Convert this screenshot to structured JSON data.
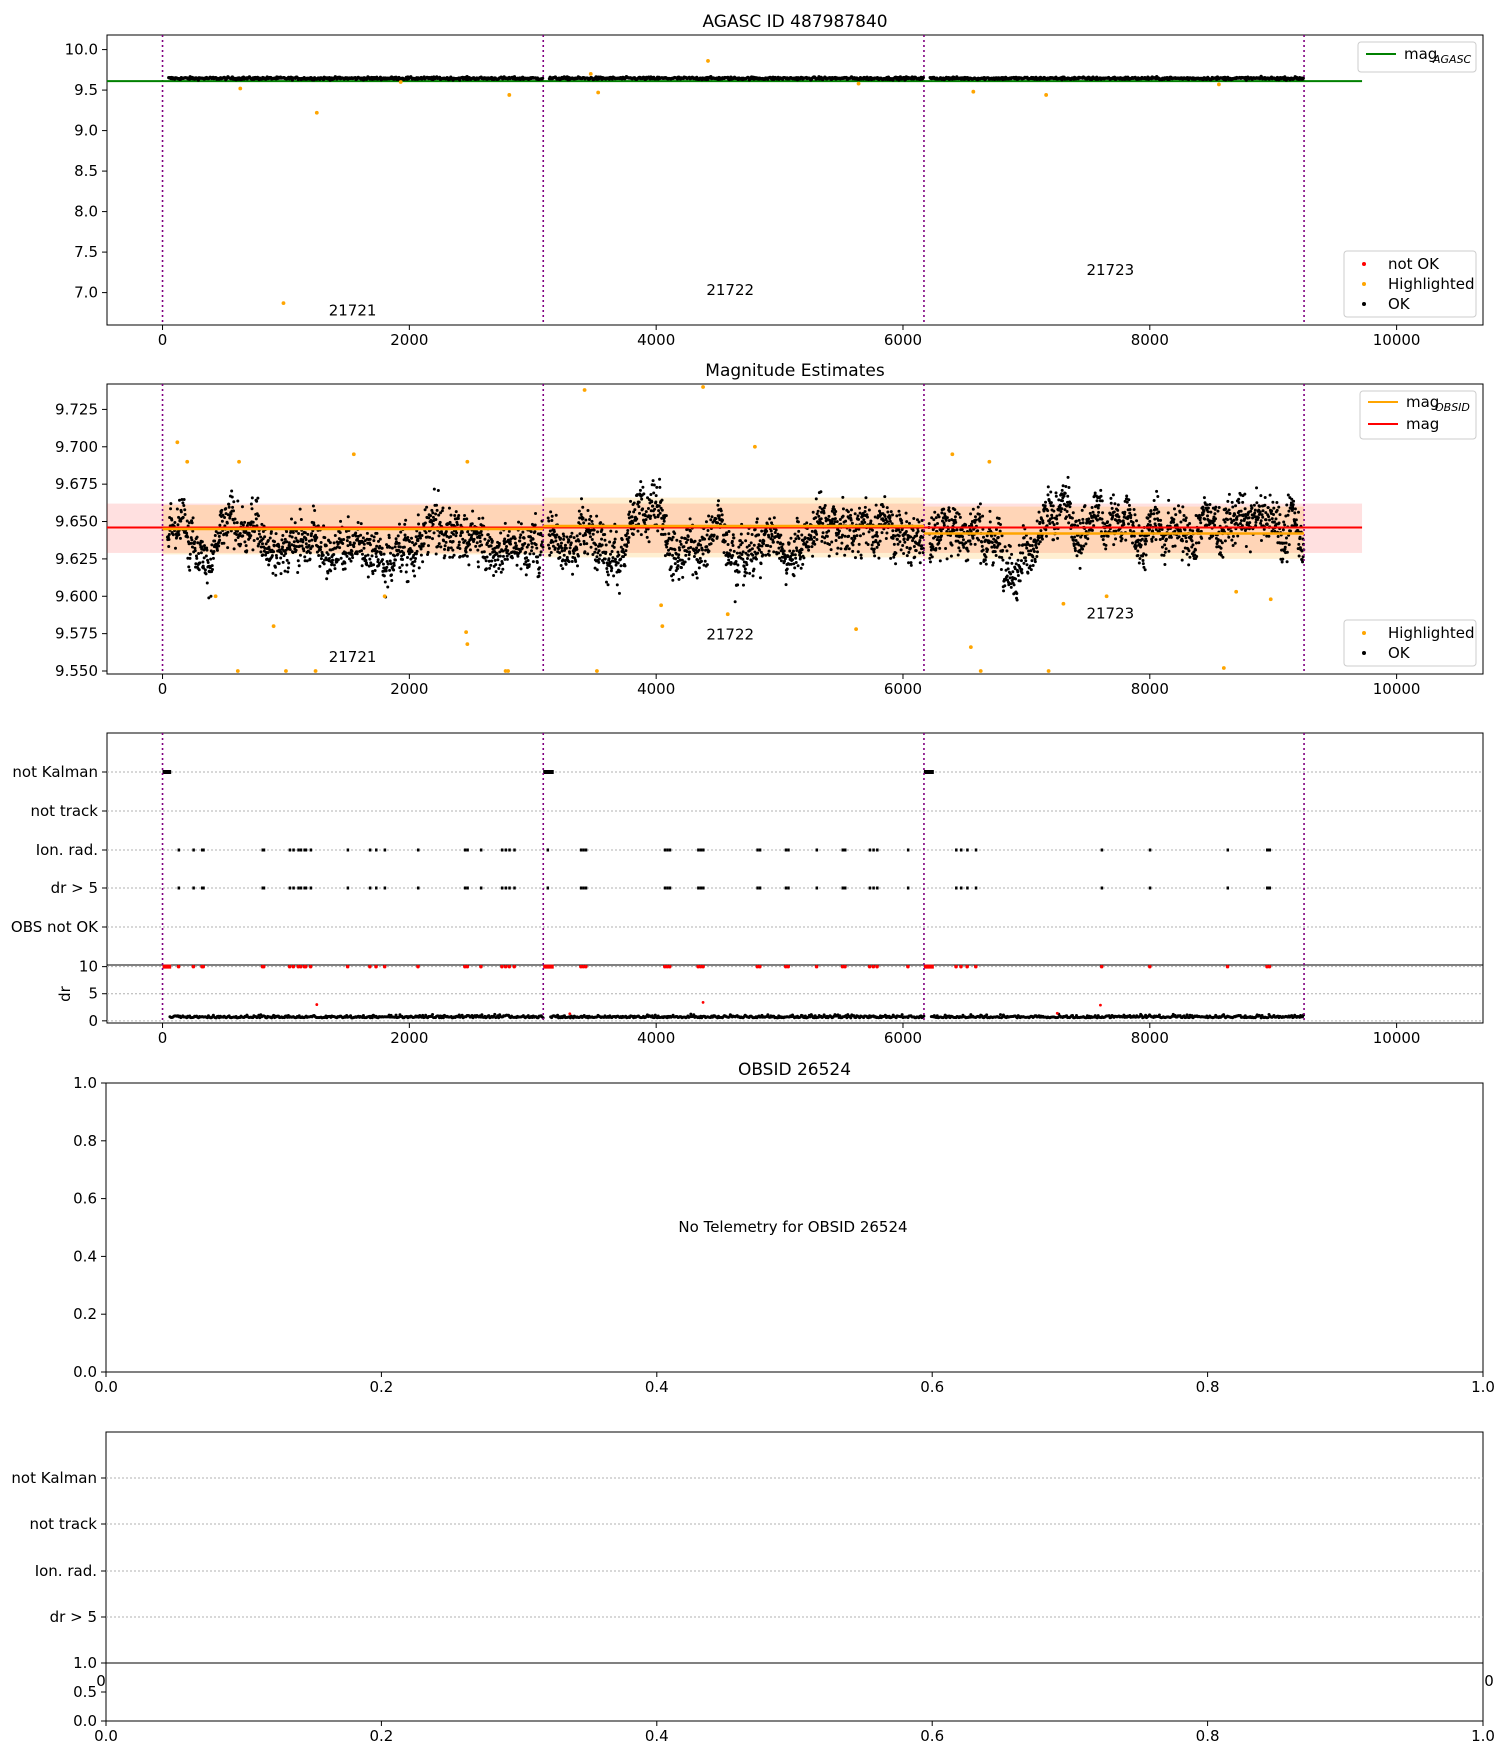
{
  "chart_data": [
    {
      "type": "scatter",
      "title": "AGASC ID 487987840",
      "xlim": [
        -450,
        10700
      ],
      "ylim": [
        6.6,
        10.18
      ],
      "xticks": [
        0,
        2000,
        4000,
        6000,
        8000,
        10000
      ],
      "yticks": [
        7.0,
        7.5,
        8.0,
        8.5,
        9.0,
        9.5,
        10.0
      ],
      "ytick_format": 1,
      "obsid_boundaries": [
        0,
        3085,
        6170,
        9250
      ],
      "obsid_labels": [
        {
          "text": "21721",
          "x": 1540,
          "y": 6.72
        },
        {
          "text": "21722",
          "x": 4600,
          "y": 6.97
        },
        {
          "text": "21723",
          "x": 7680,
          "y": 7.22
        }
      ],
      "reference_line": {
        "name": "mag_AGASC",
        "y": 9.61,
        "x_range": [
          -450,
          9720
        ],
        "color": "#008000"
      },
      "ok_band": {
        "center": 9.645,
        "spread": 0.012
      },
      "highlighted_points": [
        [
          980,
          6.87
        ],
        [
          1250,
          9.22
        ],
        [
          2810,
          9.44
        ],
        [
          4420,
          9.86
        ],
        [
          3530,
          9.47
        ],
        [
          7160,
          9.44
        ],
        [
          630,
          9.52
        ],
        [
          6570,
          9.48
        ],
        [
          5640,
          9.58
        ],
        [
          8560,
          9.57
        ],
        [
          1930,
          9.6
        ],
        [
          3470,
          9.7
        ]
      ],
      "not_ok_points": [],
      "legend_upper": [
        {
          "label": "mag",
          "sub": "AGASC",
          "color": "#008000",
          "kind": "line"
        }
      ],
      "legend_lower": [
        {
          "label": "not OK",
          "color": "#ff0000",
          "kind": "dot"
        },
        {
          "label": "Highlighted",
          "color": "#ffa500",
          "kind": "dot"
        },
        {
          "label": "OK",
          "color": "#000000",
          "kind": "dot"
        }
      ]
    },
    {
      "type": "scatter",
      "title": "Magnitude Estimates",
      "xlim": [
        -450,
        10700
      ],
      "ylim": [
        9.548,
        9.742
      ],
      "xticks": [
        0,
        2000,
        4000,
        6000,
        8000,
        10000
      ],
      "yticks": [
        9.55,
        9.575,
        9.6,
        9.625,
        9.65,
        9.675,
        9.7,
        9.725
      ],
      "ytick_format": 3,
      "obsid_boundaries": [
        0,
        3085,
        6170,
        9250
      ],
      "obsid_labels": [
        {
          "text": "21721",
          "x": 1540,
          "y": 9.556
        },
        {
          "text": "21722",
          "x": 4600,
          "y": 9.571
        },
        {
          "text": "21723",
          "x": 7680,
          "y": 9.585
        }
      ],
      "mag_line": {
        "name": "mag",
        "y": 9.646,
        "x_range": [
          -450,
          9720
        ],
        "color": "#ff0000"
      },
      "mag_band": [
        9.629,
        9.662
      ],
      "obsid_segments": [
        {
          "x": [
            0,
            3085
          ],
          "mag": 9.645,
          "band": [
            9.628,
            9.661
          ]
        },
        {
          "x": [
            3085,
            6170
          ],
          "mag": 9.647,
          "band": [
            9.626,
            9.666
          ]
        },
        {
          "x": [
            6170,
            9250
          ],
          "mag": 9.642,
          "band": [
            9.625,
            9.66
          ]
        }
      ],
      "ok_band": {
        "center": 9.644,
        "spread": 0.012
      },
      "highlighted_points": [
        [
          120,
          9.703
        ],
        [
          200,
          9.69
        ],
        [
          620,
          9.69
        ],
        [
          1550,
          9.695
        ],
        [
          2470,
          9.69
        ],
        [
          2460,
          9.576
        ],
        [
          2470,
          9.568
        ],
        [
          1000,
          9.55
        ],
        [
          1240,
          9.55
        ],
        [
          610,
          9.55
        ],
        [
          3420,
          9.738
        ],
        [
          4380,
          9.74
        ],
        [
          4580,
          9.588
        ],
        [
          4040,
          9.594
        ],
        [
          4050,
          9.58
        ],
        [
          3520,
          9.55
        ],
        [
          5620,
          9.578
        ],
        [
          6550,
          9.566
        ],
        [
          6400,
          9.695
        ],
        [
          6630,
          9.55
        ],
        [
          7180,
          9.55
        ],
        [
          7300,
          9.595
        ],
        [
          7650,
          9.6
        ],
        [
          8600,
          9.552
        ],
        [
          8980,
          9.598
        ],
        [
          8700,
          9.603
        ],
        [
          900,
          9.58
        ],
        [
          1800,
          9.6
        ],
        [
          430,
          9.6
        ],
        [
          2800,
          9.55
        ],
        [
          2780,
          9.55
        ],
        [
          4800,
          9.7
        ],
        [
          6700,
          9.69
        ]
      ],
      "legend_upper": [
        {
          "label": "mag",
          "sub": "OBSID",
          "color": "#ffa500",
          "kind": "line"
        },
        {
          "label": "mag",
          "sub": "",
          "color": "#ff0000",
          "kind": "line"
        }
      ],
      "legend_lower": [
        {
          "label": "Highlighted",
          "color": "#ffa500",
          "kind": "dot"
        },
        {
          "label": "OK",
          "color": "#000000",
          "kind": "dot"
        }
      ]
    },
    {
      "type": "scatter",
      "title": "",
      "xlim": [
        -450,
        10700
      ],
      "xticks": [
        0,
        2000,
        4000,
        6000,
        8000,
        10000
      ],
      "obsid_boundaries": [
        0,
        3085,
        6170,
        9250
      ],
      "flag_rows": [
        "not Kalman",
        "not track",
        "Ion. rad.",
        "dr > 5",
        "OBS not OK"
      ],
      "not_kalman_spans": [
        [
          0,
          70
        ],
        [
          3085,
          3170
        ],
        [
          6170,
          6250
        ]
      ],
      "ion_rad_times": [
        130,
        250,
        320,
        330,
        810,
        820,
        1030,
        1060,
        1100,
        1120,
        1150,
        1160,
        1200,
        1500,
        1680,
        1730,
        1800,
        2070,
        2450,
        2470,
        2580,
        2750,
        2780,
        2810,
        2850,
        3120,
        3390,
        3410,
        3430,
        4070,
        4090,
        4110,
        4340,
        4360,
        4380,
        4820,
        4840,
        5050,
        5070,
        5300,
        5510,
        5530,
        5730,
        5760,
        5790,
        6040,
        6430,
        6470,
        6520,
        6590,
        7610,
        8000,
        8630,
        8950,
        8970
      ],
      "dr_ylim": [
        -0.4,
        10.3
      ],
      "dr_yticks": [
        0,
        5,
        10
      ],
      "dr_label": "dr",
      "dr_baseline": 0.55,
      "dr_spikes": [
        [
          1250,
          3.0
        ],
        [
          4380,
          3.4
        ],
        [
          7600,
          2.9
        ],
        [
          3300,
          1.3
        ],
        [
          7250,
          1.4
        ]
      ],
      "dr_red_flags_y": 10
    },
    {
      "type": "scatter",
      "title": "OBSID 26524",
      "xlim": [
        0,
        1
      ],
      "ylim": [
        0,
        1
      ],
      "xticks": [
        0.0,
        0.2,
        0.4,
        0.6,
        0.8,
        1.0
      ],
      "yticks": [
        0.0,
        0.2,
        0.4,
        0.6,
        0.8,
        1.0
      ],
      "annotation": "No Telemetry for OBSID 26524"
    },
    {
      "type": "scatter",
      "title": "",
      "flag_rows": [
        "not Kalman",
        "not track",
        "Ion. rad.",
        "dr > 5"
      ],
      "bottom_xlim": [
        0,
        1
      ],
      "bottom_ylim": [
        0,
        1
      ],
      "bottom_xticks": [
        0.0,
        0.2,
        0.4,
        0.6,
        0.8,
        1.0
      ],
      "bottom_yticks": [
        0.0,
        0.5,
        1.0
      ],
      "clipped_left_tick": "0",
      "clipped_right_tick": "0"
    }
  ]
}
